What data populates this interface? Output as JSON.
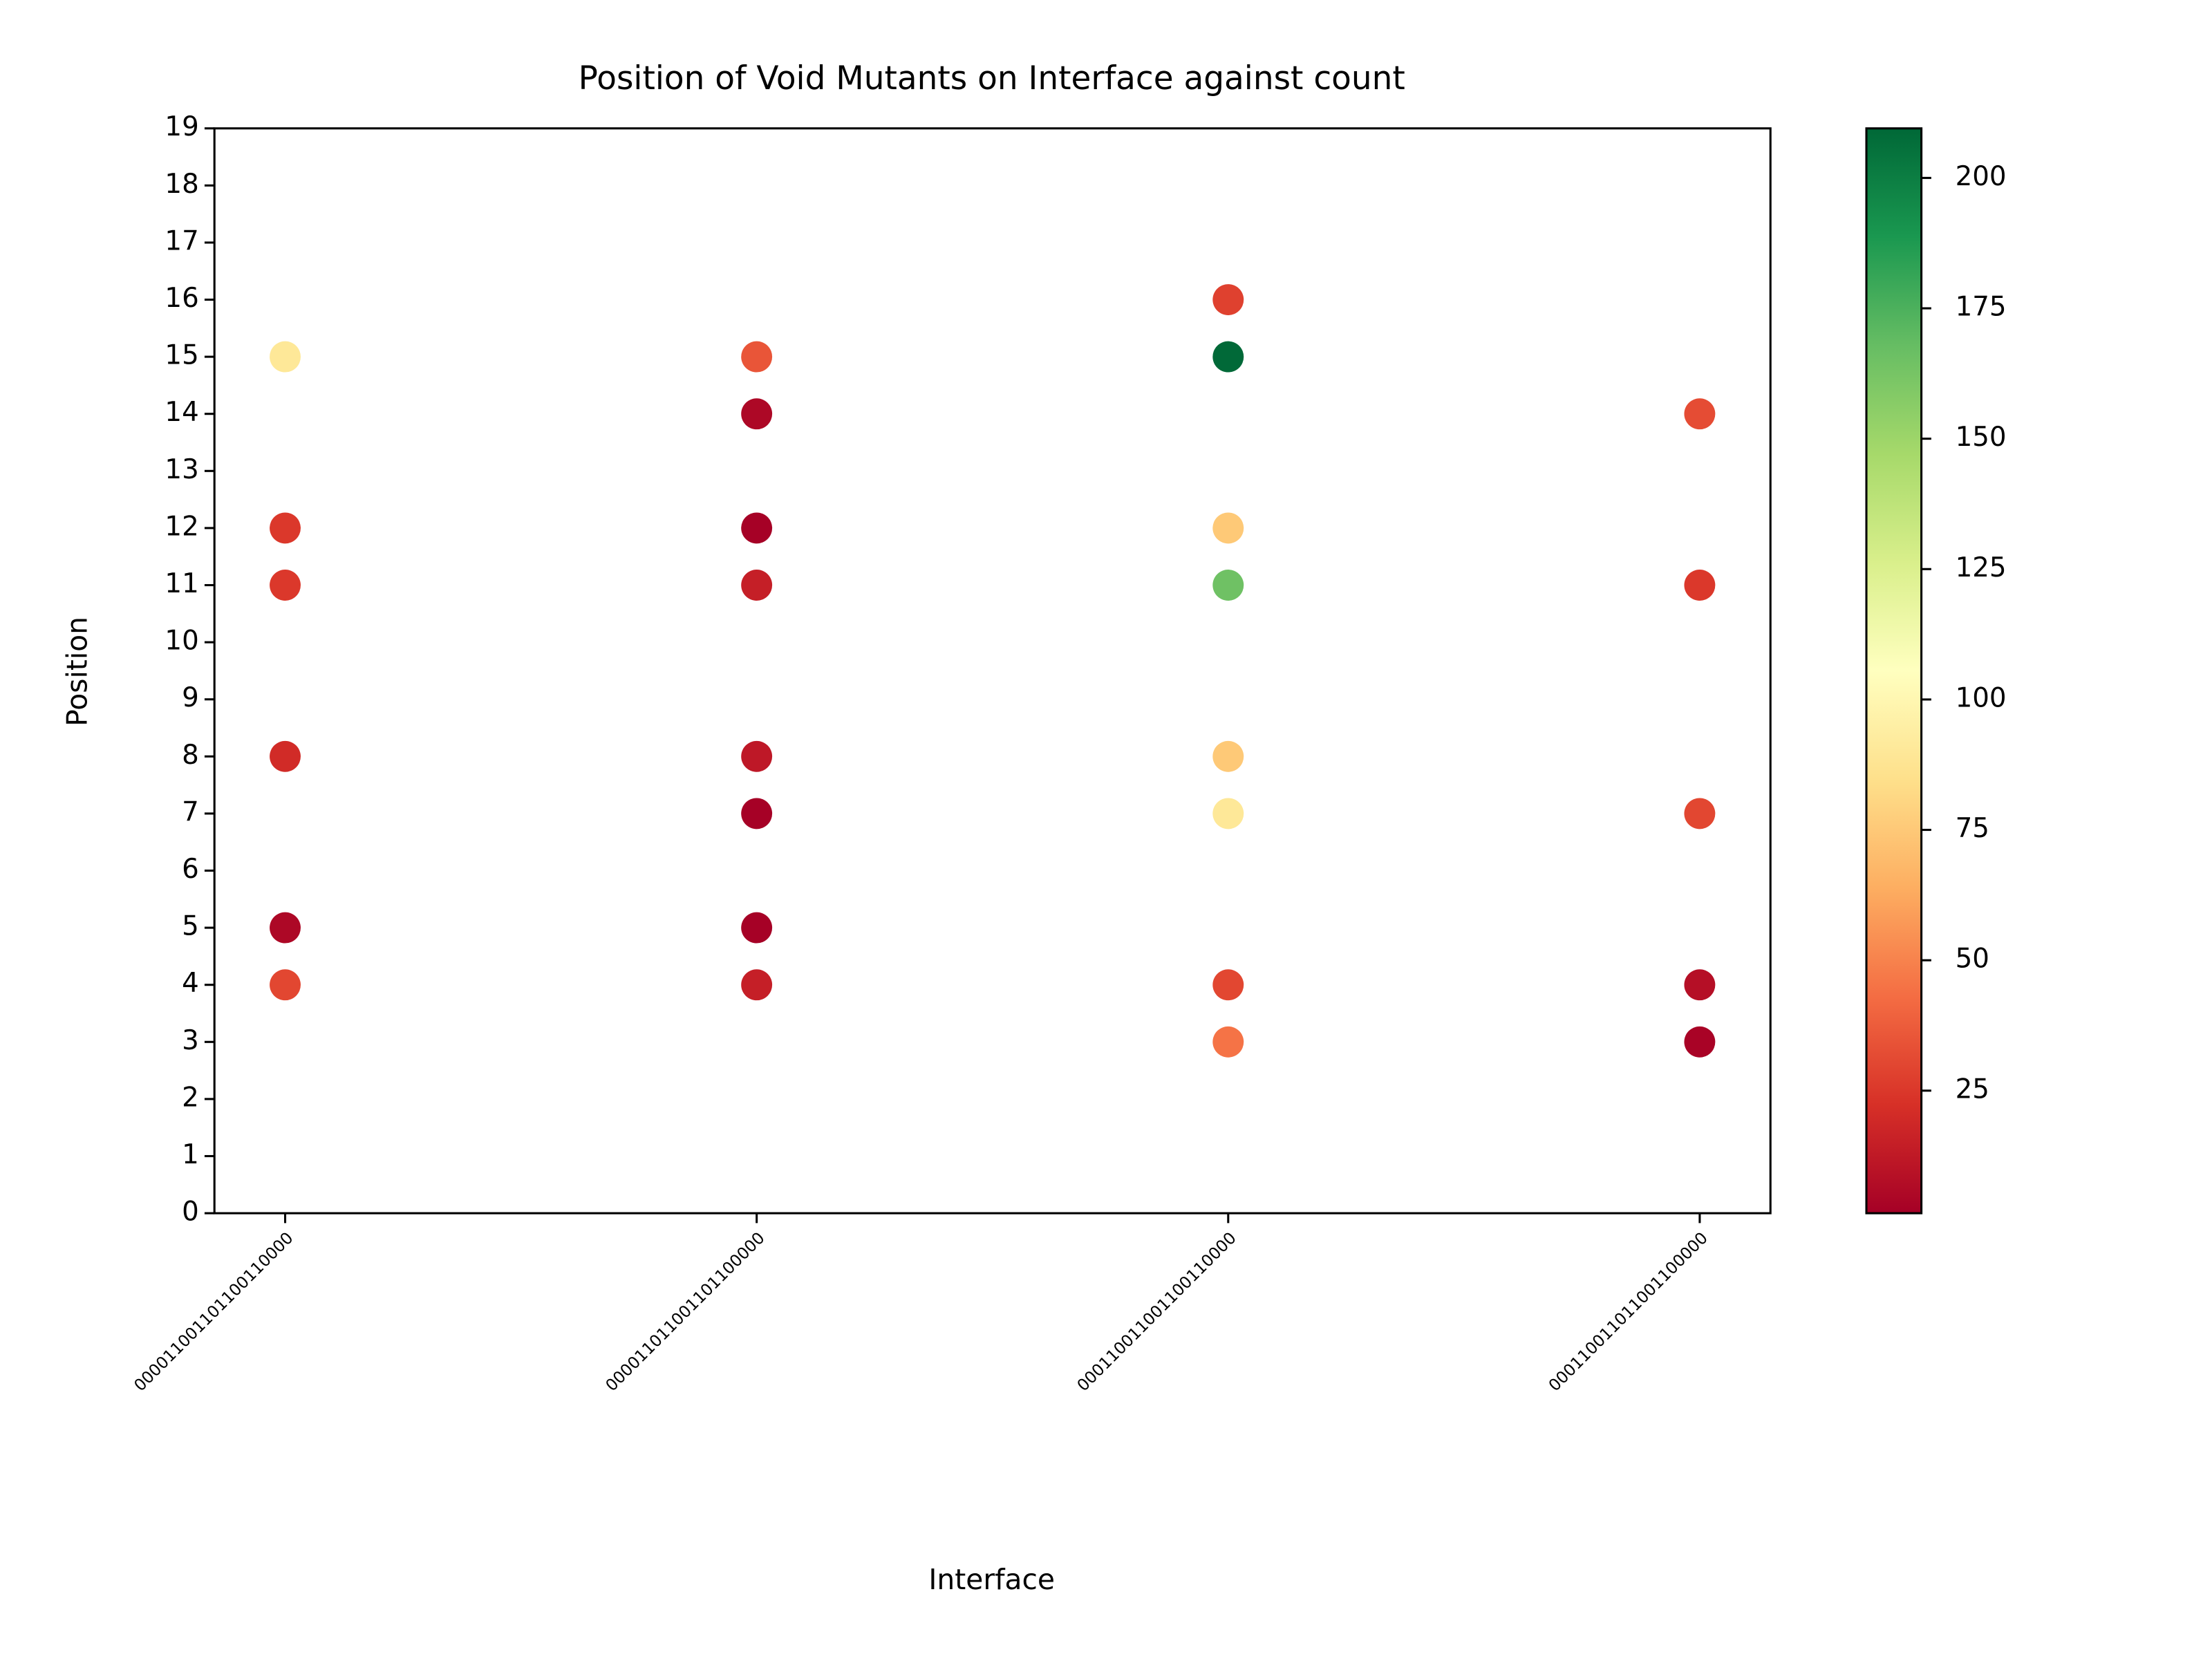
{
  "chart_data": {
    "type": "scatter",
    "title": "Position of Void Mutants on Interface against count",
    "xlabel": "Interface",
    "ylabel": "Position",
    "xticks": [
      {
        "value": 0,
        "label": "000011001101100110000"
      },
      {
        "value": 1,
        "label": "000011011001101100000"
      },
      {
        "value": 2,
        "label": "000110011001100110000"
      },
      {
        "value": 3,
        "label": "000110011011001100000"
      }
    ],
    "xlim": [
      -0.15,
      3.15
    ],
    "ylim": [
      0,
      19
    ],
    "yticks": [
      0,
      1,
      2,
      3,
      4,
      5,
      6,
      7,
      8,
      9,
      10,
      11,
      12,
      13,
      14,
      15,
      16,
      17,
      18,
      19
    ],
    "x": [
      0,
      0,
      0,
      0,
      0,
      0,
      1,
      1,
      1,
      1,
      1,
      1,
      1,
      1,
      2,
      2,
      2,
      2,
      2,
      2,
      2,
      2,
      3,
      3,
      3,
      3,
      3
    ],
    "y": [
      15,
      12,
      11,
      8,
      5,
      4,
      15,
      14,
      12,
      11,
      8,
      7,
      5,
      4,
      16,
      15,
      12,
      11,
      8,
      7,
      4,
      3,
      14,
      11,
      7,
      4,
      3
    ],
    "c": [
      90,
      25,
      25,
      20,
      5,
      30,
      35,
      5,
      2,
      15,
      12,
      2,
      2,
      15,
      28,
      209,
      75,
      165,
      75,
      90,
      30,
      45,
      32,
      25,
      30,
      8,
      3
    ],
    "colormap": "RdYlGn",
    "clim": [
      1.5,
      209.5
    ],
    "cticks": [
      25,
      50,
      75,
      100,
      125,
      150,
      175,
      200
    ]
  }
}
